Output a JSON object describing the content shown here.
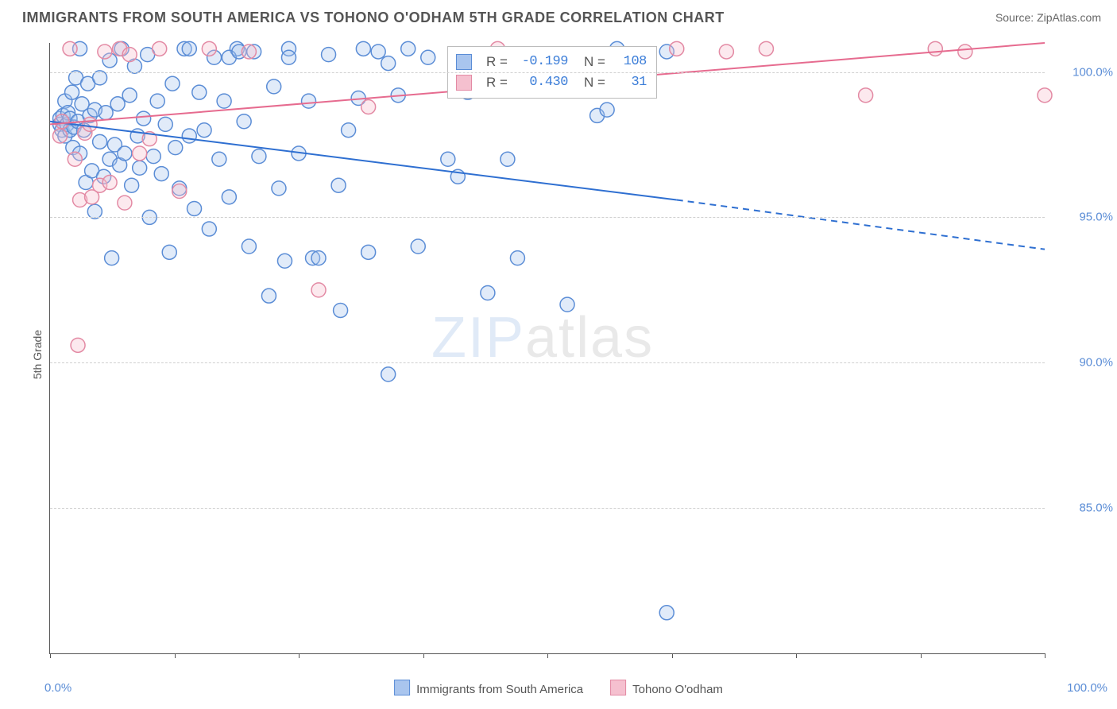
{
  "title": "IMMIGRANTS FROM SOUTH AMERICA VS TOHONO O'ODHAM 5TH GRADE CORRELATION CHART",
  "source_prefix": "Source: ",
  "source_name": "ZipAtlas.com",
  "ylabel": "5th Grade",
  "watermark_a": "ZIP",
  "watermark_b": "atlas",
  "chart": {
    "type": "scatter",
    "background_color": "#ffffff",
    "grid_color": "#d0d0d0",
    "axis_color": "#555555",
    "xlim": [
      0,
      100
    ],
    "ylim": [
      80,
      101
    ],
    "ytick_values": [
      85.0,
      90.0,
      95.0,
      100.0
    ],
    "ytick_labels": [
      "85.0%",
      "90.0%",
      "95.0%",
      "100.0%"
    ],
    "xtick_positions": [
      0,
      12.5,
      25,
      37.5,
      50,
      62.5,
      75,
      87.5,
      100
    ],
    "xlabel_min": "0.0%",
    "xlabel_max": "100.0%",
    "marker_radius": 9,
    "marker_stroke_width": 1.5,
    "marker_fill_opacity": 0.35,
    "series": [
      {
        "name": "Immigrants from South America",
        "color_fill": "#a9c5ee",
        "color_stroke": "#5b8dd6",
        "r_label": "R =",
        "r_value": "-0.199",
        "n_label": "N =",
        "n_value": "108",
        "trend": {
          "x1": 0,
          "y1": 98.3,
          "x2": 63,
          "y2": 95.6,
          "dash_to_x": 100,
          "dash_to_y": 93.9,
          "color": "#2e6fd1",
          "width": 2
        },
        "points": [
          [
            1,
            98.4
          ],
          [
            1,
            98.2
          ],
          [
            1.2,
            98.0
          ],
          [
            1.3,
            98.5
          ],
          [
            1.5,
            99.0
          ],
          [
            1.5,
            97.8
          ],
          [
            1.7,
            98.2
          ],
          [
            1.8,
            98.6
          ],
          [
            2,
            98.0
          ],
          [
            2,
            98.4
          ],
          [
            2.2,
            99.3
          ],
          [
            2.3,
            97.4
          ],
          [
            2.4,
            98.1
          ],
          [
            2.6,
            99.8
          ],
          [
            2.8,
            98.3
          ],
          [
            3,
            100.8
          ],
          [
            3,
            97.2
          ],
          [
            3.2,
            98.9
          ],
          [
            3.4,
            98.0
          ],
          [
            3.6,
            96.2
          ],
          [
            3.8,
            99.6
          ],
          [
            4,
            98.5
          ],
          [
            4.2,
            96.6
          ],
          [
            4.5,
            95.2
          ],
          [
            4.5,
            98.7
          ],
          [
            5,
            97.6
          ],
          [
            5,
            99.8
          ],
          [
            5.4,
            96.4
          ],
          [
            5.6,
            98.6
          ],
          [
            6,
            97.0
          ],
          [
            6,
            100.4
          ],
          [
            6.2,
            93.6
          ],
          [
            6.5,
            97.5
          ],
          [
            6.8,
            98.9
          ],
          [
            7,
            96.8
          ],
          [
            7.2,
            100.8
          ],
          [
            7.5,
            97.2
          ],
          [
            8,
            99.2
          ],
          [
            8.2,
            96.1
          ],
          [
            8.5,
            100.2
          ],
          [
            8.8,
            97.8
          ],
          [
            9,
            96.7
          ],
          [
            9.4,
            98.4
          ],
          [
            9.8,
            100.6
          ],
          [
            10,
            95.0
          ],
          [
            10.4,
            97.1
          ],
          [
            10.8,
            99.0
          ],
          [
            11.2,
            96.5
          ],
          [
            11.6,
            98.2
          ],
          [
            12,
            93.8
          ],
          [
            12.3,
            99.6
          ],
          [
            12.6,
            97.4
          ],
          [
            13,
            96.0
          ],
          [
            13.5,
            100.8
          ],
          [
            14,
            97.8
          ],
          [
            14.5,
            95.3
          ],
          [
            15,
            99.3
          ],
          [
            15.5,
            98.0
          ],
          [
            16,
            94.6
          ],
          [
            16.5,
            100.5
          ],
          [
            17,
            97.0
          ],
          [
            17.5,
            99.0
          ],
          [
            18,
            95.7
          ],
          [
            18.8,
            100.8
          ],
          [
            19.5,
            98.3
          ],
          [
            20,
            94.0
          ],
          [
            20.5,
            100.7
          ],
          [
            21,
            97.1
          ],
          [
            22,
            92.3
          ],
          [
            22.5,
            99.5
          ],
          [
            23,
            96.0
          ],
          [
            23.6,
            93.5
          ],
          [
            24,
            100.8
          ],
          [
            25,
            97.2
          ],
          [
            26,
            99.0
          ],
          [
            26.4,
            93.6
          ],
          [
            27,
            93.6
          ],
          [
            28,
            100.6
          ],
          [
            29,
            96.1
          ],
          [
            29.2,
            91.8
          ],
          [
            30,
            98.0
          ],
          [
            31,
            99.1
          ],
          [
            31.5,
            100.8
          ],
          [
            32,
            93.8
          ],
          [
            33,
            100.7
          ],
          [
            34,
            89.6
          ],
          [
            34,
            100.3
          ],
          [
            35,
            99.2
          ],
          [
            36,
            100.8
          ],
          [
            37,
            94.0
          ],
          [
            38,
            100.5
          ],
          [
            40,
            97.0
          ],
          [
            41,
            96.4
          ],
          [
            42,
            99.3
          ],
          [
            44,
            92.4
          ],
          [
            46,
            97.0
          ],
          [
            47,
            93.6
          ],
          [
            50,
            99.4
          ],
          [
            52,
            92.0
          ],
          [
            55,
            98.5
          ],
          [
            56,
            98.7
          ],
          [
            57,
            100.8
          ],
          [
            62,
            81.4
          ],
          [
            62,
            100.7
          ],
          [
            14,
            100.8
          ],
          [
            18,
            100.5
          ],
          [
            19,
            100.7
          ],
          [
            24,
            100.5
          ]
        ]
      },
      {
        "name": "Tohono O'odham",
        "color_fill": "#f5c0cf",
        "color_stroke": "#e38aa4",
        "r_label": "R =",
        "r_value": "0.430",
        "n_label": "N =",
        "n_value": "31",
        "trend": {
          "x1": 0,
          "y1": 98.2,
          "x2": 100,
          "y2": 101.0,
          "color": "#e66b8f",
          "width": 2
        },
        "points": [
          [
            1,
            97.8
          ],
          [
            1.2,
            98.3
          ],
          [
            2,
            100.8
          ],
          [
            2.5,
            97.0
          ],
          [
            2.8,
            90.6
          ],
          [
            3,
            95.6
          ],
          [
            3.5,
            97.9
          ],
          [
            4,
            98.2
          ],
          [
            4.2,
            95.7
          ],
          [
            5,
            96.1
          ],
          [
            5.5,
            100.7
          ],
          [
            6,
            96.2
          ],
          [
            7,
            100.8
          ],
          [
            7.5,
            95.5
          ],
          [
            8,
            100.6
          ],
          [
            9,
            97.2
          ],
          [
            10,
            97.7
          ],
          [
            11,
            100.8
          ],
          [
            13,
            95.9
          ],
          [
            16,
            100.8
          ],
          [
            20,
            100.7
          ],
          [
            27,
            92.5
          ],
          [
            32,
            98.8
          ],
          [
            45,
            100.8
          ],
          [
            63,
            100.8
          ],
          [
            68,
            100.7
          ],
          [
            72,
            100.8
          ],
          [
            82,
            99.2
          ],
          [
            89,
            100.8
          ],
          [
            92,
            100.7
          ],
          [
            100,
            99.2
          ]
        ]
      }
    ]
  },
  "legend": {
    "items": [
      {
        "label": "Immigrants from South America",
        "fill": "#a9c5ee",
        "stroke": "#5b8dd6"
      },
      {
        "label": "Tohono O'odham",
        "fill": "#f5c0cf",
        "stroke": "#e38aa4"
      }
    ]
  }
}
